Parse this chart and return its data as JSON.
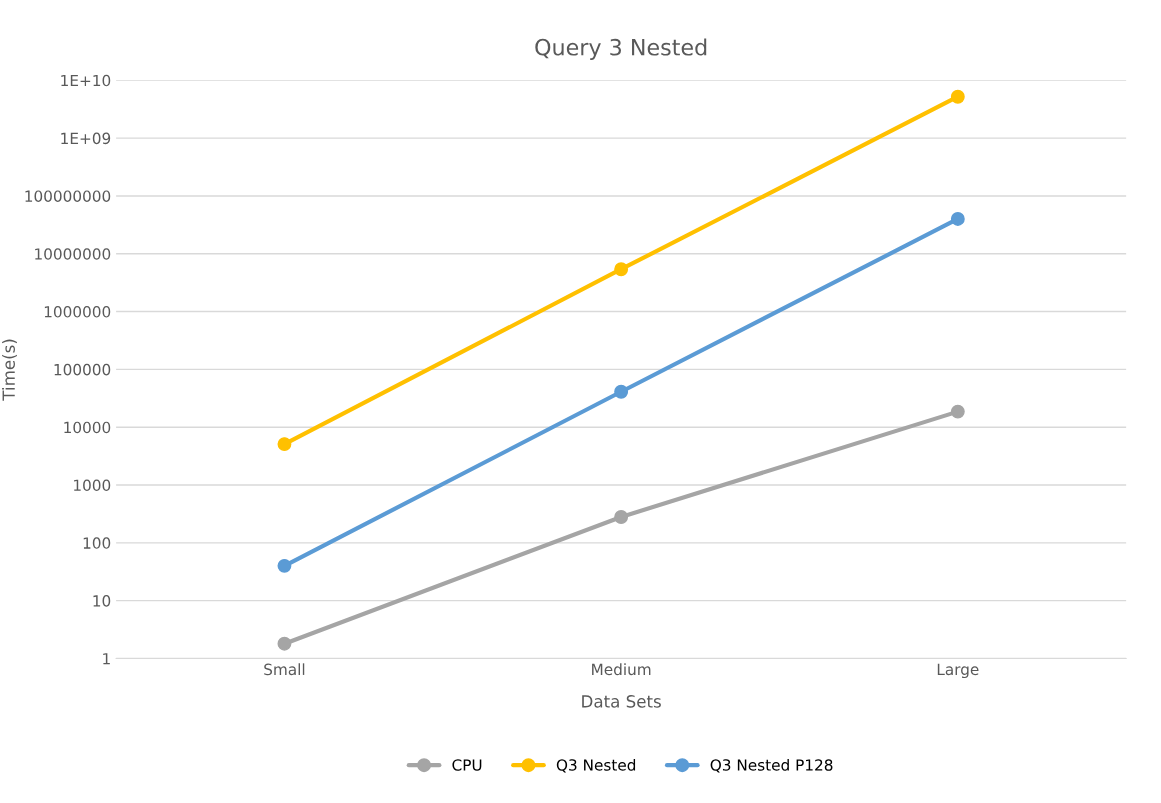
{
  "chart_data": {
    "type": "line",
    "title": "Query 3 Nested",
    "xlabel": "Data Sets",
    "ylabel": "Time(s)",
    "categories": [
      "Small",
      "Medium",
      "Large"
    ],
    "series": [
      {
        "name": "CPU",
        "color": "#a5a5a5",
        "values": [
          1.8,
          280,
          18600
        ]
      },
      {
        "name": "Q3 Nested",
        "color": "#ffc000",
        "values": [
          5100,
          5400000,
          5200000000
        ]
      },
      {
        "name": "Q3 Nested P128",
        "color": "#5b9bd5",
        "values": [
          40,
          41000,
          40000000
        ]
      }
    ],
    "log": "y",
    "ylim": [
      1,
      10000000000
    ],
    "yticks": [
      1,
      10,
      100,
      1000,
      10000,
      100000,
      1000000,
      10000000,
      100000000,
      {
        "value": 1000000000,
        "label": "1E+09"
      },
      {
        "value": 10000000000,
        "label": "1E+10"
      }
    ],
    "grid": "y",
    "legend": "bottom",
    "marker": "circle",
    "line_style": "solid"
  }
}
